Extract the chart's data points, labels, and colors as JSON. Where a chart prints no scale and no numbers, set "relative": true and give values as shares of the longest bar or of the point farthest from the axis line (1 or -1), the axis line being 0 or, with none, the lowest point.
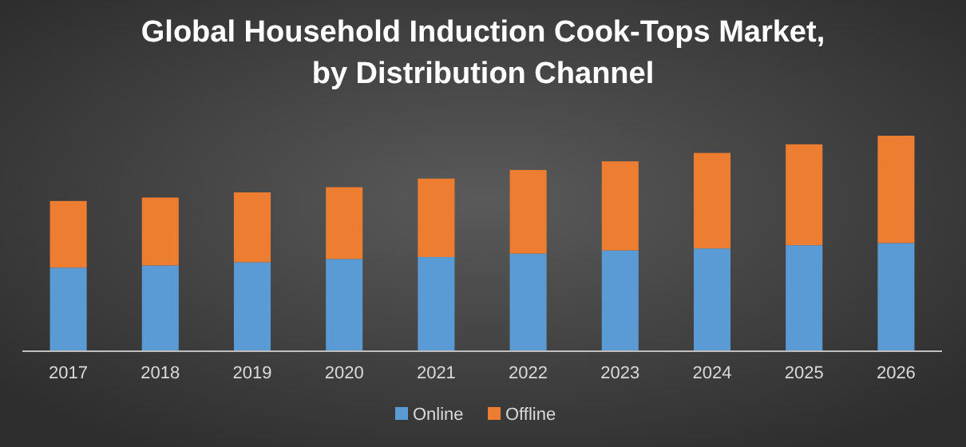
{
  "chart_data": {
    "type": "bar",
    "title": "Global Household Induction Cook-Tops Market,\nby Distribution Channel",
    "categories": [
      "2017",
      "2018",
      "2019",
      "2020",
      "2021",
      "2022",
      "2023",
      "2024",
      "2025",
      "2026"
    ],
    "relative": true,
    "stacked": true,
    "legend": "bottom",
    "series": [
      {
        "name": "Online",
        "color": "#5b9bd5",
        "values": [
          0.388,
          0.398,
          0.413,
          0.428,
          0.437,
          0.453,
          0.468,
          0.477,
          0.492,
          0.502
        ]
      },
      {
        "name": "Offline",
        "color": "#ed7d31",
        "values": [
          0.309,
          0.315,
          0.324,
          0.333,
          0.364,
          0.388,
          0.413,
          0.443,
          0.468,
          0.498
        ]
      }
    ]
  }
}
